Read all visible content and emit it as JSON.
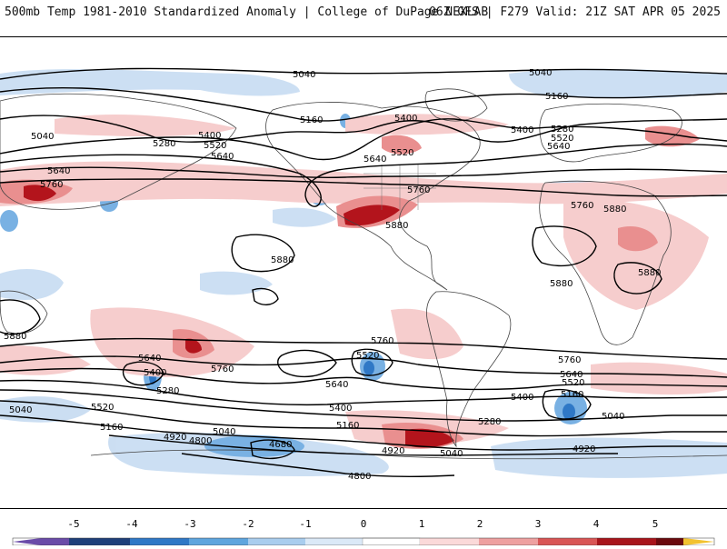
{
  "header": {
    "title": "500mb Temp 1981-2010 Standardized Anomaly | College of DuPage NEXLAB",
    "run_info": "06Z GFS | F279 Valid: 21Z SAT APR 05 2025"
  },
  "colorbar": {
    "ticks": [
      "-5",
      "-4",
      "-3",
      "-2",
      "-1",
      "0",
      "1",
      "2",
      "3",
      "4",
      "5"
    ],
    "colors": [
      "#6a4ba8",
      "#1f3f7a",
      "#2f78c6",
      "#5ea5de",
      "#a9cdee",
      "#dbe9f7",
      "#ffffff",
      "#fbd9d9",
      "#eea0a0",
      "#d95555",
      "#a8141b",
      "#6b0a0e",
      "#f2c230"
    ]
  },
  "map": {
    "contour_labels": [
      "5040",
      "5040",
      "5160",
      "5160",
      "5280",
      "5400",
      "5520",
      "5640",
      "5640",
      "5760",
      "5880",
      "5880",
      "5880",
      "5880",
      "5880",
      "4920",
      "4800",
      "4680",
      "4800",
      "5040",
      "5160",
      "5280",
      "5400",
      "5520",
      "5640",
      "5760",
      "5040",
      "5520",
      "5400",
      "5280",
      "5160",
      "5040",
      "4920",
      "5760",
      "5640",
      "5400",
      "5520",
      "5640",
      "5760",
      "5280",
      "5400",
      "5520",
      "5640",
      "5760",
      "5400",
      "5520",
      "5640",
      "5760",
      "5880",
      "5160",
      "5040",
      "4920",
      "5040"
    ]
  },
  "anomaly_colors": {
    "strong_warm": "#b3141c",
    "warm": "#e98f8f",
    "light_warm": "#f6cdcd",
    "light_cool": "#c9ddf2",
    "cool": "#79b1e3",
    "strong_cool": "#2f78c6"
  }
}
